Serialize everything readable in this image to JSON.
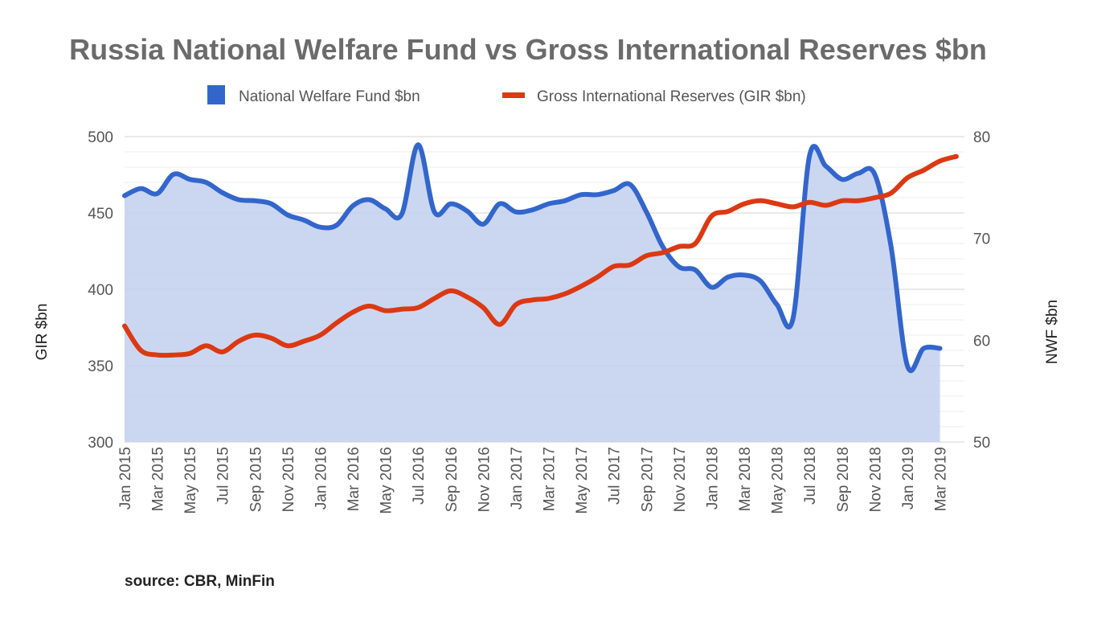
{
  "chart_data": {
    "type": "line",
    "title": "Russia National Welfare Fund vs Gross International Reserves $bn",
    "source": "source: CBR, MinFin",
    "x_tick_labels": [
      "Jan 2015",
      "Mar 2015",
      "May 2015",
      "Jul 2015",
      "Sep 2015",
      "Nov 2015",
      "Jan 2016",
      "Mar 2016",
      "May 2016",
      "Jul 2016",
      "Sep 2016",
      "Nov 2016",
      "Jan 2017",
      "Mar 2017",
      "May 2017",
      "Jul 2017",
      "Sep 2017",
      "Nov 2017",
      "Jan 2018",
      "Mar 2018",
      "May 2018",
      "Jul 2018",
      "Sep 2018",
      "Nov 2018",
      "Jan 2019",
      "Mar 2019"
    ],
    "y_left": {
      "label": "GIR $bn",
      "range": [
        300,
        500
      ],
      "ticks": [
        300,
        350,
        400,
        450,
        500
      ]
    },
    "y_right": {
      "label": "NWF $bn",
      "range": [
        50,
        80
      ],
      "ticks": [
        50,
        60,
        70,
        80
      ]
    },
    "grid": true,
    "legend": {
      "position": "top"
    },
    "series": [
      {
        "name": "National Welfare Fund $bn",
        "chart_type": "area",
        "axis": "right",
        "color": "#3366cc",
        "fill": "#c2d0ee",
        "x": [
          "2015-01",
          "2015-02",
          "2015-03",
          "2015-04",
          "2015-05",
          "2015-06",
          "2015-07",
          "2015-08",
          "2015-09",
          "2015-10",
          "2015-11",
          "2015-12",
          "2016-01",
          "2016-02",
          "2016-03",
          "2016-04",
          "2016-05",
          "2016-06",
          "2016-07",
          "2016-08",
          "2016-09",
          "2016-10",
          "2016-11",
          "2016-12",
          "2017-01",
          "2017-02",
          "2017-03",
          "2017-04",
          "2017-05",
          "2017-06",
          "2017-07",
          "2017-08",
          "2017-09",
          "2017-10",
          "2017-11",
          "2017-12",
          "2018-01",
          "2018-02",
          "2018-03",
          "2018-04",
          "2018-05",
          "2018-06",
          "2018-07",
          "2018-08",
          "2018-09",
          "2018-10",
          "2018-11",
          "2018-12",
          "2019-01",
          "2019-02",
          "2019-03"
        ],
        "values": [
          74.2,
          74.9,
          74.4,
          76.3,
          75.8,
          75.5,
          74.5,
          73.8,
          73.7,
          73.4,
          72.3,
          71.8,
          71.1,
          71.3,
          73.2,
          73.8,
          72.9,
          72.4,
          79.2,
          72.6,
          73.4,
          72.7,
          71.4,
          73.4,
          72.6,
          72.8,
          73.4,
          73.7,
          74.3,
          74.3,
          74.7,
          75.3,
          72.6,
          69.2,
          67.2,
          66.9,
          65.2,
          66.2,
          66.4,
          65.8,
          63.5,
          62.2,
          78.1,
          77.1,
          75.8,
          76.4,
          76.3,
          69.2,
          57.5,
          59.2,
          59.2
        ]
      },
      {
        "name": "Gross International Reserves (GIR $bn)",
        "chart_type": "line",
        "axis": "left",
        "color": "#dc3912",
        "x": [
          "2015-01",
          "2015-02",
          "2015-03",
          "2015-04",
          "2015-05",
          "2015-06",
          "2015-07",
          "2015-08",
          "2015-09",
          "2015-10",
          "2015-11",
          "2015-12",
          "2016-01",
          "2016-02",
          "2016-03",
          "2016-04",
          "2016-05",
          "2016-06",
          "2016-07",
          "2016-08",
          "2016-09",
          "2016-10",
          "2016-11",
          "2016-12",
          "2017-01",
          "2017-02",
          "2017-03",
          "2017-04",
          "2017-05",
          "2017-06",
          "2017-07",
          "2017-08",
          "2017-09",
          "2017-10",
          "2017-11",
          "2017-12",
          "2018-01",
          "2018-02",
          "2018-03",
          "2018-04",
          "2018-05",
          "2018-06",
          "2018-07",
          "2018-08",
          "2018-09",
          "2018-10",
          "2018-11",
          "2018-12",
          "2019-01",
          "2019-02",
          "2019-03",
          "2019-04"
        ],
        "values": [
          376,
          360,
          357,
          357,
          358,
          363,
          359,
          366,
          370,
          368,
          363,
          366,
          370,
          378,
          385,
          389,
          386,
          387,
          388,
          394,
          399,
          395,
          388,
          377,
          390,
          393,
          394,
          397,
          402,
          408,
          415,
          416,
          422,
          424,
          428,
          430,
          448,
          451,
          456,
          458,
          456,
          454,
          457,
          455,
          458,
          458,
          460,
          463,
          473,
          478,
          484,
          487
        ]
      }
    ]
  }
}
